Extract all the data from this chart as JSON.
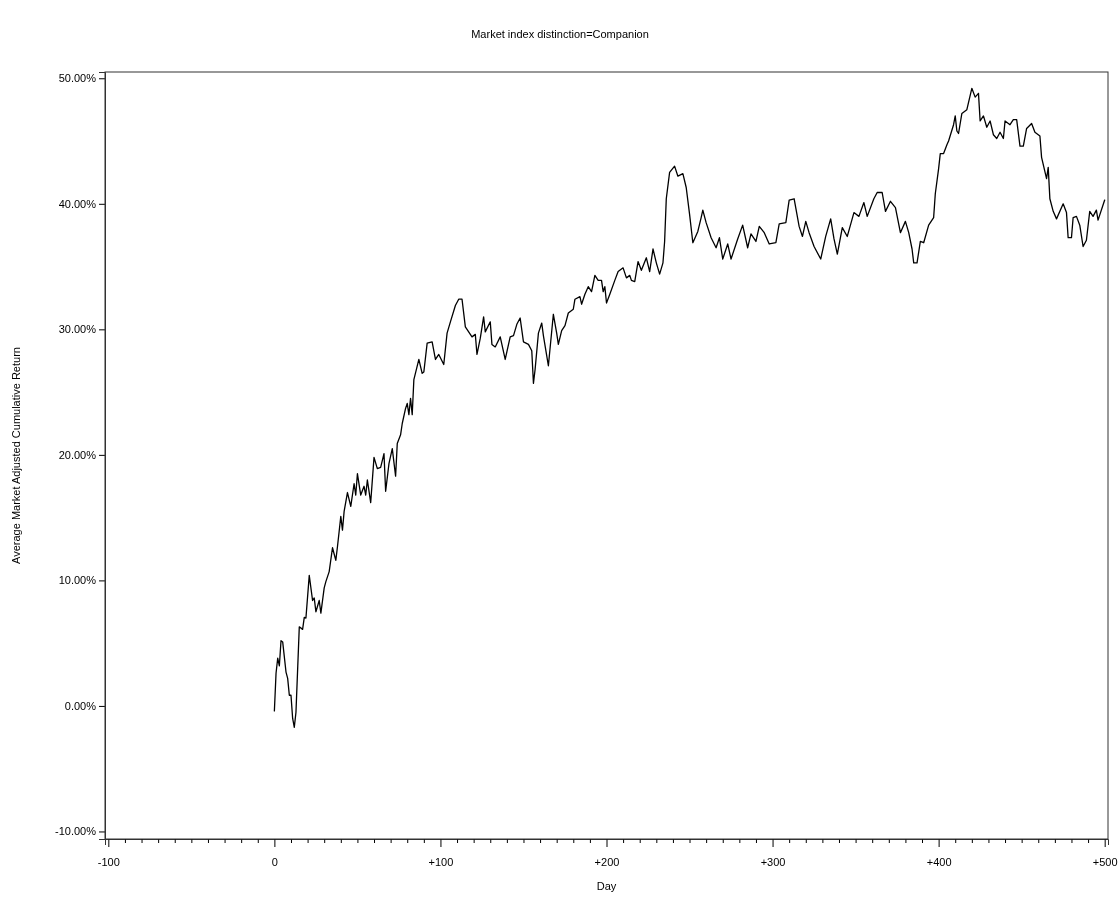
{
  "chart_data": {
    "type": "line",
    "subtitle": "Market index distinction=Companion",
    "xlabel": "Day",
    "ylabel": "Average Market Adjusted Cumulative Return",
    "xlim": [
      -102,
      502
    ],
    "ylim": [
      -10.6,
      50.5
    ],
    "xticks": [
      -100,
      {
        "value": -90,
        "label": null
      },
      {
        "value": -80,
        "label": null
      },
      {
        "value": -70,
        "label": null
      },
      {
        "value": -60,
        "label": null
      },
      {
        "value": -50,
        "label": null
      },
      {
        "value": -40,
        "label": null
      },
      {
        "value": -30,
        "label": null
      },
      {
        "value": -20,
        "label": null
      },
      {
        "value": -10,
        "label": null
      },
      0,
      {
        "value": 10,
        "label": null
      },
      {
        "value": 20,
        "label": null
      },
      {
        "value": 30,
        "label": null
      },
      {
        "value": 40,
        "label": null
      },
      {
        "value": 50,
        "label": null
      },
      {
        "value": 60,
        "label": null
      },
      {
        "value": 70,
        "label": null
      },
      {
        "value": 80,
        "label": null
      },
      {
        "value": 90,
        "label": null
      },
      {
        "value": 100,
        "label": "+100"
      },
      {
        "value": 110,
        "label": null
      },
      {
        "value": 120,
        "label": null
      },
      {
        "value": 130,
        "label": null
      },
      {
        "value": 140,
        "label": null
      },
      {
        "value": 150,
        "label": null
      },
      {
        "value": 160,
        "label": null
      },
      {
        "value": 170,
        "label": null
      },
      {
        "value": 180,
        "label": null
      },
      {
        "value": 190,
        "label": null
      },
      {
        "value": 200,
        "label": "+200"
      },
      {
        "value": 210,
        "label": null
      },
      {
        "value": 220,
        "label": null
      },
      {
        "value": 230,
        "label": null
      },
      {
        "value": 240,
        "label": null
      },
      {
        "value": 250,
        "label": null
      },
      {
        "value": 260,
        "label": null
      },
      {
        "value": 270,
        "label": null
      },
      {
        "value": 280,
        "label": null
      },
      {
        "value": 290,
        "label": null
      },
      {
        "value": 300,
        "label": "+300"
      },
      {
        "value": 310,
        "label": null
      },
      {
        "value": 320,
        "label": null
      },
      {
        "value": 330,
        "label": null
      },
      {
        "value": 340,
        "label": null
      },
      {
        "value": 350,
        "label": null
      },
      {
        "value": 360,
        "label": null
      },
      {
        "value": 370,
        "label": null
      },
      {
        "value": 380,
        "label": null
      },
      {
        "value": 390,
        "label": null
      },
      {
        "value": 400,
        "label": "+400"
      },
      {
        "value": 410,
        "label": null
      },
      {
        "value": 420,
        "label": null
      },
      {
        "value": 430,
        "label": null
      },
      {
        "value": 440,
        "label": null
      },
      {
        "value": 450,
        "label": null
      },
      {
        "value": 460,
        "label": null
      },
      {
        "value": 470,
        "label": null
      },
      {
        "value": 480,
        "label": null
      },
      {
        "value": 490,
        "label": null
      },
      {
        "value": 500,
        "label": "+500"
      }
    ],
    "yticks": [
      {
        "value": -10,
        "label": "-10.00%"
      },
      {
        "value": 0,
        "label": "0.00%"
      },
      {
        "value": 10,
        "label": "10.00%"
      },
      {
        "value": 20,
        "label": "20.00%"
      },
      {
        "value": 30,
        "label": "30.00%"
      },
      {
        "value": 40,
        "label": "40.00%"
      },
      {
        "value": 50,
        "label": "50.00%"
      }
    ],
    "series": [
      {
        "color": "#000000",
        "x": [
          0,
          1,
          2,
          3,
          4,
          5,
          7,
          8,
          9,
          10,
          11,
          12,
          13,
          15,
          17,
          18,
          19,
          21,
          23,
          24,
          25,
          27,
          28,
          30,
          31,
          33,
          35,
          37,
          38,
          39,
          40,
          41,
          42,
          44,
          46,
          48,
          49,
          50,
          52,
          54,
          55,
          56,
          58,
          60,
          62,
          64,
          66,
          67,
          69,
          71,
          73,
          74,
          76,
          77,
          79,
          80,
          81,
          82,
          83,
          84,
          87,
          89,
          90,
          92,
          95,
          97,
          99,
          102,
          104,
          106,
          109,
          111,
          113,
          115,
          119,
          121,
          122,
          124,
          126,
          127,
          130,
          131,
          133,
          136,
          139,
          140,
          142,
          144,
          146,
          148,
          150,
          153,
          155,
          156,
          157,
          159,
          161,
          162,
          165,
          168,
          170,
          171,
          173,
          175,
          177,
          180,
          181,
          184,
          185,
          187,
          189,
          191,
          193,
          195,
          197,
          198,
          199,
          200,
          202,
          205,
          207,
          210,
          212,
          214,
          215,
          217,
          219,
          221,
          224,
          226,
          228,
          230,
          232,
          234,
          235,
          236,
          238,
          241,
          243,
          246,
          248,
          250,
          252,
          255,
          257,
          258,
          260,
          263,
          266,
          268,
          270,
          273,
          275,
          279,
          282,
          285,
          287,
          290,
          292,
          295,
          298,
          302,
          304,
          308,
          310,
          313,
          316,
          318,
          320,
          322,
          325,
          329,
          332,
          335,
          337,
          339,
          342,
          345,
          349,
          352,
          355,
          357,
          361,
          363,
          366,
          368,
          371,
          374,
          377,
          380,
          382,
          384,
          385,
          387,
          389,
          391,
          394,
          397,
          398,
          400,
          401,
          403,
          405,
          406,
          409,
          410,
          411,
          412,
          414,
          417,
          420,
          422,
          424,
          425,
          427,
          429,
          431,
          433,
          435,
          437,
          439,
          440,
          443,
          445,
          447,
          449,
          451,
          453,
          456,
          458,
          461,
          462,
          465,
          466,
          467,
          469,
          471,
          475,
          477,
          478,
          480,
          481,
          483,
          485,
          487,
          489,
          491,
          493,
          495,
          496,
          500
        ],
        "values": [
          -0.4,
          2.6,
          3.8,
          3.2,
          5.2,
          5.1,
          2.7,
          2.2,
          0.85,
          0.85,
          -1.0,
          -1.7,
          -0.5,
          6.3,
          6.1,
          7.05,
          7.0,
          10.4,
          8.4,
          8.6,
          7.5,
          8.4,
          7.4,
          9.4,
          9.9,
          10.7,
          12.6,
          11.6,
          12.7,
          13.9,
          15.1,
          14.0,
          15.5,
          17.0,
          15.9,
          17.7,
          16.8,
          18.5,
          16.8,
          17.5,
          16.8,
          18.0,
          16.2,
          19.8,
          18.9,
          19.0,
          20.1,
          17.1,
          19.3,
          20.5,
          18.3,
          20.9,
          21.6,
          22.5,
          23.7,
          24.1,
          23.2,
          24.5,
          23.2,
          26.0,
          27.6,
          26.5,
          26.6,
          28.9,
          29.0,
          27.6,
          28.0,
          27.2,
          29.7,
          30.6,
          31.9,
          32.4,
          32.4,
          30.2,
          29.4,
          29.6,
          28.0,
          29.3,
          31.0,
          29.8,
          30.6,
          28.8,
          28.6,
          29.4,
          27.6,
          28.2,
          29.4,
          29.5,
          30.4,
          30.9,
          29.0,
          28.8,
          28.3,
          25.7,
          26.8,
          29.7,
          30.5,
          29.5,
          27.1,
          31.2,
          29.7,
          28.8,
          29.9,
          30.3,
          31.3,
          31.6,
          32.4,
          32.6,
          32.0,
          32.8,
          33.4,
          33.0,
          34.3,
          33.9,
          33.9,
          33.0,
          33.4,
          32.1,
          32.8,
          33.9,
          34.6,
          34.9,
          34.1,
          34.3,
          33.9,
          33.8,
          35.4,
          34.7,
          35.7,
          34.6,
          36.4,
          35.3,
          34.4,
          35.3,
          37.0,
          40.4,
          42.5,
          43.0,
          42.2,
          42.4,
          41.3,
          39.2,
          36.9,
          37.8,
          38.9,
          39.5,
          38.5,
          37.3,
          36.5,
          37.3,
          35.6,
          36.8,
          35.6,
          37.2,
          38.3,
          36.5,
          37.6,
          37.0,
          38.2,
          37.7,
          36.8,
          36.9,
          38.4,
          38.5,
          40.3,
          40.4,
          38.2,
          37.4,
          38.6,
          37.7,
          36.6,
          35.6,
          37.4,
          38.8,
          37.2,
          36.0,
          38.1,
          37.4,
          39.3,
          39.0,
          40.1,
          39.0,
          40.4,
          40.9,
          40.9,
          39.4,
          40.2,
          39.7,
          37.7,
          38.6,
          37.7,
          36.4,
          35.3,
          35.3,
          37.0,
          36.9,
          38.3,
          38.9,
          40.8,
          42.8,
          44.0,
          44.0,
          44.7,
          45.0,
          46.3,
          47.0,
          45.8,
          45.6,
          47.2,
          47.5,
          49.2,
          48.5,
          48.8,
          46.6,
          47.0,
          46.1,
          46.6,
          45.5,
          45.2,
          45.7,
          45.2,
          46.6,
          46.3,
          46.7,
          46.7,
          44.6,
          44.6,
          46.0,
          46.4,
          45.7,
          45.4,
          43.7,
          42.0,
          42.9,
          40.4,
          39.4,
          38.8,
          40.0,
          39.3,
          37.3,
          37.3,
          38.9,
          39.0,
          38.3,
          36.6,
          37.1,
          39.4,
          39.0,
          39.5,
          38.7,
          40.3
        ]
      }
    ]
  }
}
